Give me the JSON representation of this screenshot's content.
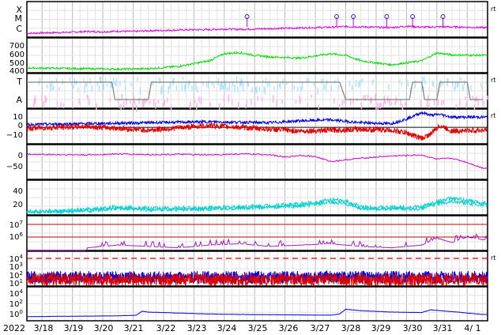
{
  "chart_data": {
    "type": "line",
    "title": "",
    "x_axis": {
      "year_label": "2022",
      "tick_labels": [
        "3/18",
        "3/19",
        "3/20",
        "3/21",
        "3/22",
        "3/23",
        "3/24",
        "3/25",
        "3/26",
        "3/27",
        "3/28",
        "3/29",
        "3/30",
        "3/31",
        "4/ 1"
      ],
      "range_days": [
        "2022-03-17T12:00",
        "2022-04-01T16:00"
      ],
      "grid": true
    },
    "right_marker": "rt",
    "panels": [
      {
        "id": "xray-class",
        "y_tick_labels": [
          "X",
          "M",
          "C"
        ],
        "series": [
          {
            "color": "#e000e0",
            "x": [
              0,
              0.5,
              1,
              1.5,
              2,
              2.5,
              3,
              3.5,
              4,
              4.5,
              5,
              5.5,
              6,
              6.5,
              7,
              7.5,
              8,
              8.5,
              9,
              9.5,
              10,
              10.5,
              11,
              11.5,
              12,
              12.5,
              13,
              13.5,
              14,
              14.5,
              15
            ],
            "y": [
              0.1,
              0.15,
              0.2,
              0.25,
              0.35,
              0.3,
              0.4,
              0.35,
              0.45,
              0.5,
              0.55,
              0.6,
              0.6,
              0.7,
              0.65,
              0.7,
              0.75,
              0.8,
              0.85,
              0.9,
              0.95,
              1.05,
              1.0,
              0.95,
              0.9,
              1.1,
              0.95,
              1.0,
              1.0,
              0.95,
              0.9
            ]
          }
        ],
        "markers_x": [
          7.25,
          10.2,
          10.75,
          11.85,
          12.7,
          13.7
        ]
      },
      {
        "id": "solar-wind-speed",
        "y_tick_labels": [
          "700",
          "600",
          "500",
          "400"
        ],
        "y_range": [
          340,
          740
        ],
        "series": [
          {
            "color": "#00e000",
            "x": [
              0,
              1,
              2,
              3,
              4,
              5,
              6,
              6.5,
              7,
              7.5,
              8,
              9,
              10,
              10.5,
              11,
              12,
              13,
              13.5,
              14,
              15
            ],
            "y": [
              380,
              375,
              370,
              365,
              370,
              400,
              470,
              560,
              575,
              540,
              520,
              505,
              560,
              540,
              470,
              420,
              470,
              570,
              545,
              540
            ]
          }
        ]
      },
      {
        "id": "imf-sector",
        "y_tick_labels": [
          "T",
          "A"
        ],
        "series": [
          {
            "color": "#808080",
            "x": [
              0,
              2.8,
              2.9,
              4.0,
              4.1,
              10.3,
              10.5,
              12.6,
              12.7,
              13.0,
              13.1,
              13.5,
              13.6,
              14.5,
              14.6,
              15
            ],
            "y": [
              1,
              1,
              0,
              0,
              1,
              1,
              0,
              0,
              1,
              1,
              0,
              0,
              1,
              1,
              0,
              0
            ]
          },
          {
            "color": "#aee6ff",
            "x": [],
            "y": []
          },
          {
            "color": "#ffb4e6",
            "x": [],
            "y": []
          }
        ]
      },
      {
        "id": "imf-components",
        "y_tick_labels": [
          "10",
          "0",
          "−10"
        ],
        "y_range": [
          -16,
          18
        ],
        "series": [
          {
            "color": "#0000e0",
            "x": [
              0,
              2,
              4,
              6,
              8,
              9,
              10,
              11,
              12,
              12.5,
              13,
              13.3,
              13.6,
              14,
              15
            ],
            "y": [
              3,
              4,
              5,
              6,
              5,
              7,
              8,
              5,
              4,
              9,
              16,
              13,
              14,
              11,
              11
            ]
          },
          {
            "color": "#e00000",
            "x": [
              0,
              2,
              4,
              6,
              8,
              9,
              10,
              11,
              12,
              12.5,
              13,
              13.3,
              13.6,
              14,
              15
            ],
            "y": [
              -1,
              1,
              -3,
              2,
              -2,
              -4,
              -3,
              -2,
              -3,
              -6,
              -12,
              -7,
              2,
              -4,
              -3
            ]
          }
        ]
      },
      {
        "id": "dst",
        "y_tick_labels": [
          "0",
          "−50"
        ],
        "y_range": [
          -75,
          22
        ],
        "series": [
          {
            "color": "#d000d0",
            "x": [
              0,
              1,
              2,
              3,
              4,
              5,
              6,
              7,
              8,
              8.5,
              9,
              9.5,
              10,
              11,
              12,
              13,
              13.5,
              14,
              14.5,
              15
            ],
            "y": [
              -3,
              -4,
              -5,
              -2,
              -4,
              -3,
              -5,
              -2,
              -4,
              -12,
              -6,
              -10,
              -25,
              -15,
              -8,
              -5,
              -18,
              -15,
              -28,
              -45
            ]
          }
        ]
      },
      {
        "id": "electron-flux",
        "y_tick_labels": [
          "40",
          "20"
        ],
        "y_range": [
          5,
          50
        ],
        "series": [
          {
            "color": "#00d0d0",
            "x": [
              0,
              1,
              2,
              3,
              4,
              5,
              6,
              7,
              8,
              9,
              10,
              10.5,
              11,
              12,
              13,
              13.5,
              14,
              15
            ],
            "y": [
              8,
              8,
              10,
              14,
              12,
              12,
              13,
              14,
              16,
              18,
              24,
              22,
              14,
              13,
              14,
              22,
              26,
              20
            ]
          }
        ]
      },
      {
        "id": "proton-flux",
        "y_tick_labels": [
          "10^7",
          "10^6"
        ],
        "threshold_color": "#c00000",
        "series": [
          {
            "color": "#a020c0",
            "x": [
              0,
              1,
              2,
              3,
              4,
              5,
              6,
              7,
              8,
              9,
              10,
              11,
              12,
              13,
              13.5,
              14,
              14.5,
              15
            ],
            "y": [
              0,
              0,
              5.2,
              5.4,
              5.3,
              5.2,
              5.4,
              5.5,
              5.3,
              5.4,
              5.5,
              5.3,
              5.2,
              5.4,
              5.9,
              5.6,
              6.0,
              5.8
            ]
          }
        ]
      },
      {
        "id": "particle-count",
        "y_tick_labels": [
          "10^4",
          "10^3",
          "10^2",
          "10^1"
        ],
        "threshold_color": "#e00000",
        "series": [
          {
            "color": "#0000e0",
            "x": [],
            "y": []
          },
          {
            "color": "#e00000",
            "x": [],
            "y": []
          }
        ]
      },
      {
        "id": "background-flux",
        "y_tick_labels": [
          "10^4",
          "10^2",
          "10^0"
        ],
        "series": [
          {
            "color": "#0000e0",
            "x": [
              0,
              1,
              2,
              3,
              3.6,
              3.8,
              4,
              5,
              6,
              7,
              8,
              9,
              10,
              10.3,
              10.5,
              11,
              12,
              13,
              13.3,
              13.6,
              14,
              15
            ],
            "y": [
              0.05,
              0.1,
              0.15,
              0.2,
              0.35,
              1.2,
              1.0,
              0.8,
              0.6,
              0.5,
              0.45,
              0.4,
              0.35,
              0.6,
              1.6,
              1.3,
              1.0,
              0.9,
              1.5,
              1.3,
              1.1,
              0.5
            ]
          }
        ]
      }
    ]
  }
}
